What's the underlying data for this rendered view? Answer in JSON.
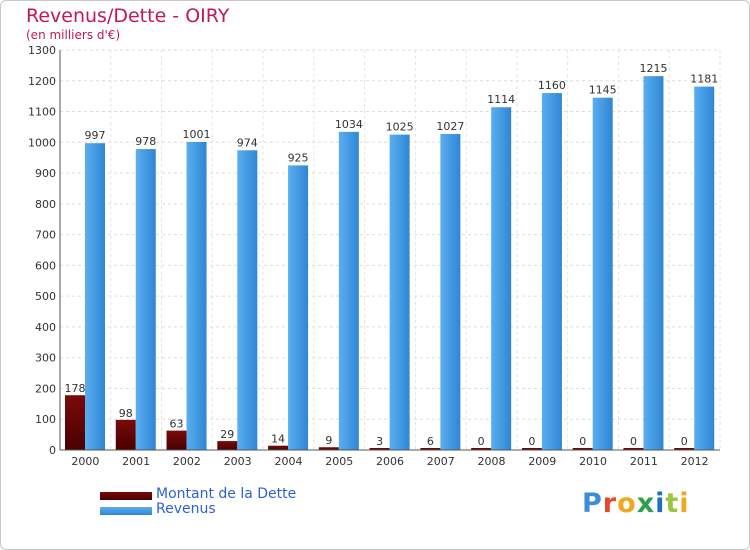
{
  "title": "Revenus/Dette - OIRY",
  "subtitle": "(en milliers d'€)",
  "logo": {
    "text": "Proxiti",
    "letters": [
      "P",
      "r",
      "o",
      "x",
      "i",
      "t",
      "i"
    ]
  },
  "colors": {
    "dette_top": "#7a0a0a",
    "dette_bottom": "#4a0000",
    "revenus_light": "#5aaef0",
    "revenus_dark": "#2f86d4",
    "title": "#c2185b",
    "legend_text": "#2f5fd8"
  },
  "legend": [
    {
      "label": "Montant de la Dette",
      "color": "#6b0d0d"
    },
    {
      "label": "Revenus",
      "color": "#4aa3ea"
    }
  ],
  "chart_data": {
    "type": "bar",
    "title": "Revenus/Dette - OIRY",
    "ylabel": "(en milliers d'€)",
    "xlabel": "",
    "ylim": [
      0,
      1300
    ],
    "yticks": [
      0,
      100,
      200,
      300,
      400,
      500,
      600,
      700,
      800,
      900,
      1000,
      1100,
      1200,
      1300
    ],
    "grid": true,
    "legend_position": "bottom-left",
    "categories": [
      "2000",
      "2001",
      "2002",
      "2003",
      "2004",
      "2005",
      "2006",
      "2007",
      "2008",
      "2009",
      "2010",
      "2011",
      "2012"
    ],
    "series": [
      {
        "name": "Montant de la Dette",
        "values": [
          178,
          98,
          63,
          29,
          14,
          9,
          3,
          6,
          0,
          0,
          0,
          0,
          0
        ]
      },
      {
        "name": "Revenus",
        "values": [
          997,
          978,
          1001,
          974,
          925,
          1034,
          1025,
          1027,
          1114,
          1160,
          1145,
          1215,
          1181
        ]
      }
    ]
  }
}
